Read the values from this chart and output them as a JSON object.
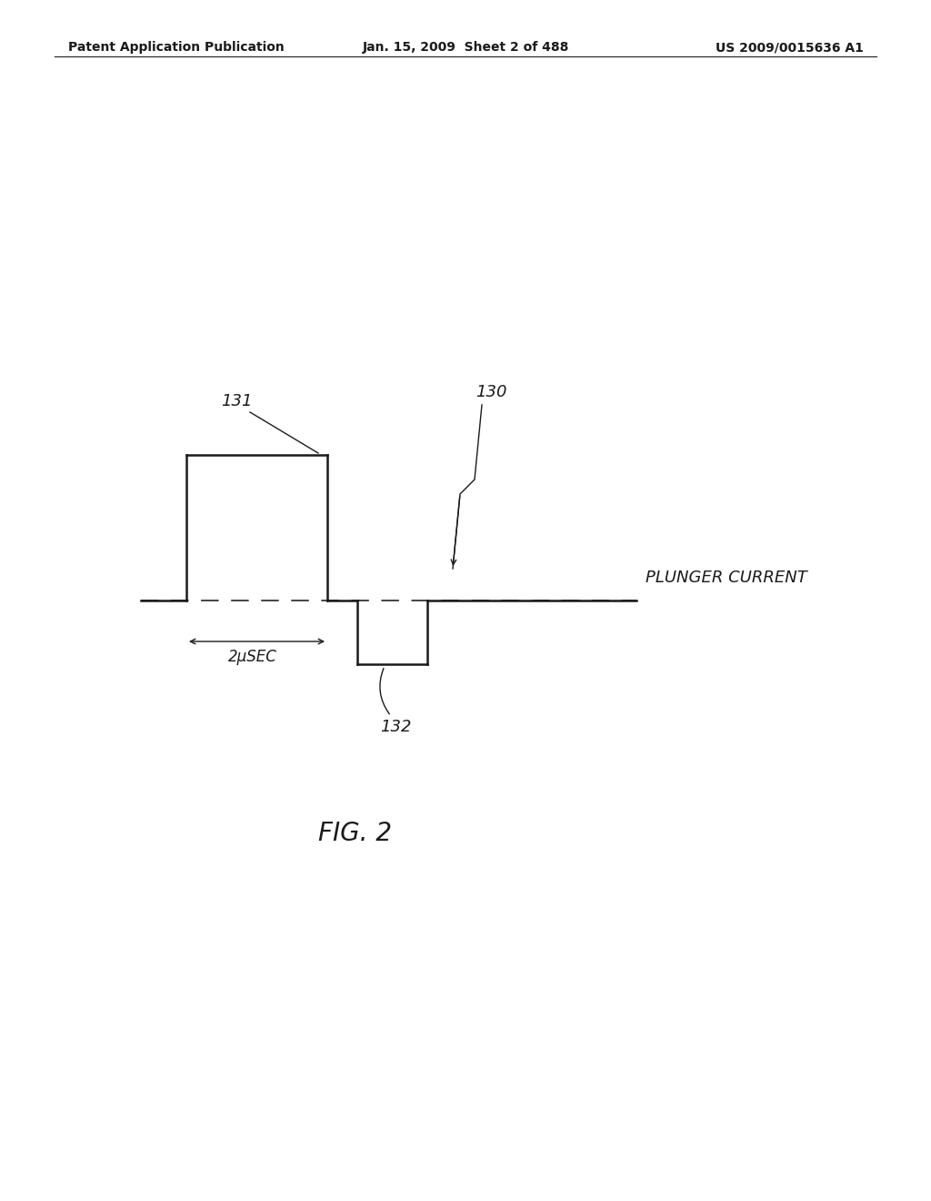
{
  "title_left": "Patent Application Publication",
  "title_center": "Jan. 15, 2009  Sheet 2 of 488",
  "title_right": "US 2009/0015636 A1",
  "fig_label": "FIG. 2",
  "label_130": "130",
  "label_131": "131",
  "label_132": "132",
  "label_2usec": "2μSEC",
  "label_plunger": "PLUNGER CURRENT",
  "bg_color": "#ffffff",
  "line_color": "#1a1a1a"
}
